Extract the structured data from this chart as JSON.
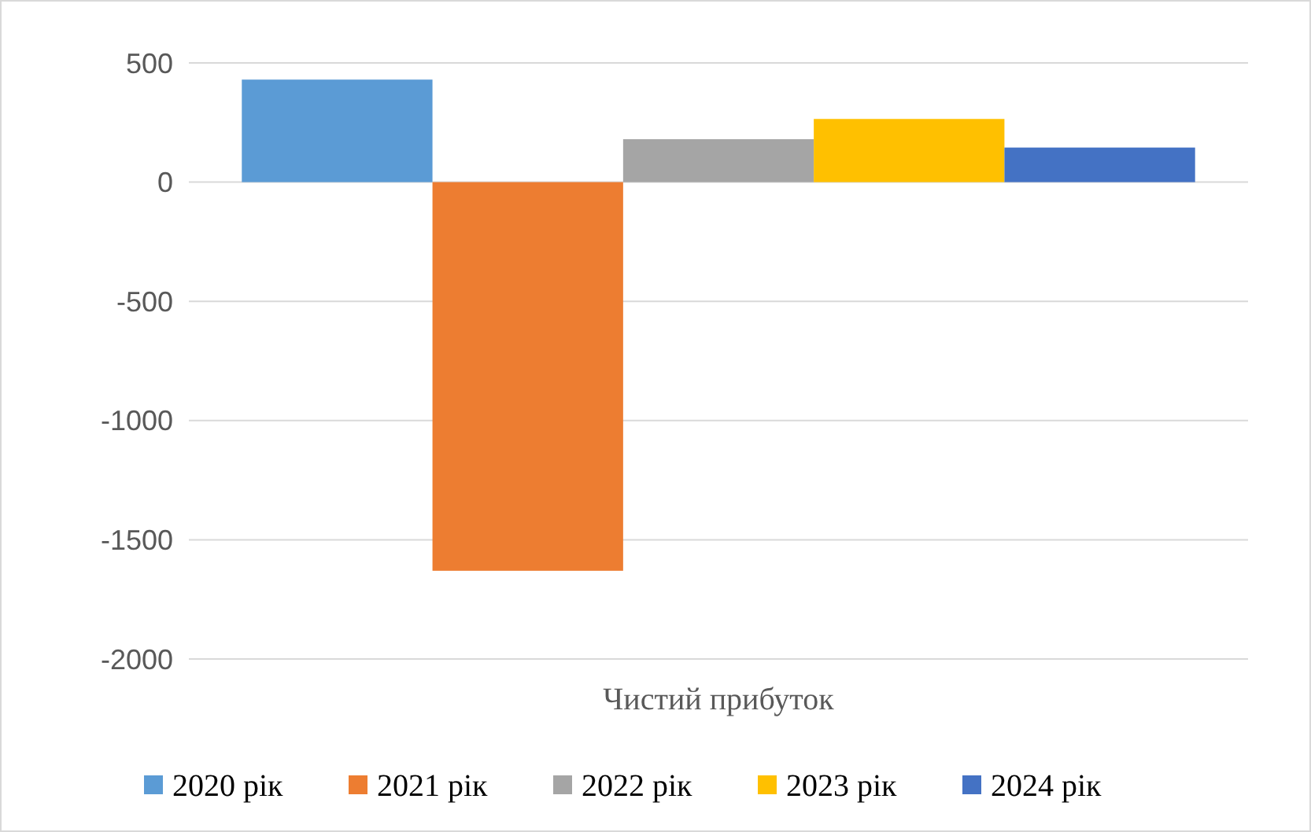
{
  "chart_data": {
    "type": "bar",
    "categories": [
      "Чистий прибуток"
    ],
    "series": [
      {
        "name": "2020 рік",
        "color": "#5b9bd5",
        "values": [
          430
        ]
      },
      {
        "name": "2021 рік",
        "color": "#ed7d31",
        "values": [
          -1630
        ]
      },
      {
        "name": "2022 рік",
        "color": "#a5a5a5",
        "values": [
          180
        ]
      },
      {
        "name": "2023 рік",
        "color": "#ffc000",
        "values": [
          265
        ]
      },
      {
        "name": "2024 рік",
        "color": "#4472c4",
        "values": [
          145
        ]
      }
    ],
    "ylim": [
      -2000,
      500
    ],
    "yticks": [
      -2000,
      -1500,
      -1000,
      -500,
      0,
      500
    ],
    "grid": "y",
    "legend": "bottom"
  }
}
